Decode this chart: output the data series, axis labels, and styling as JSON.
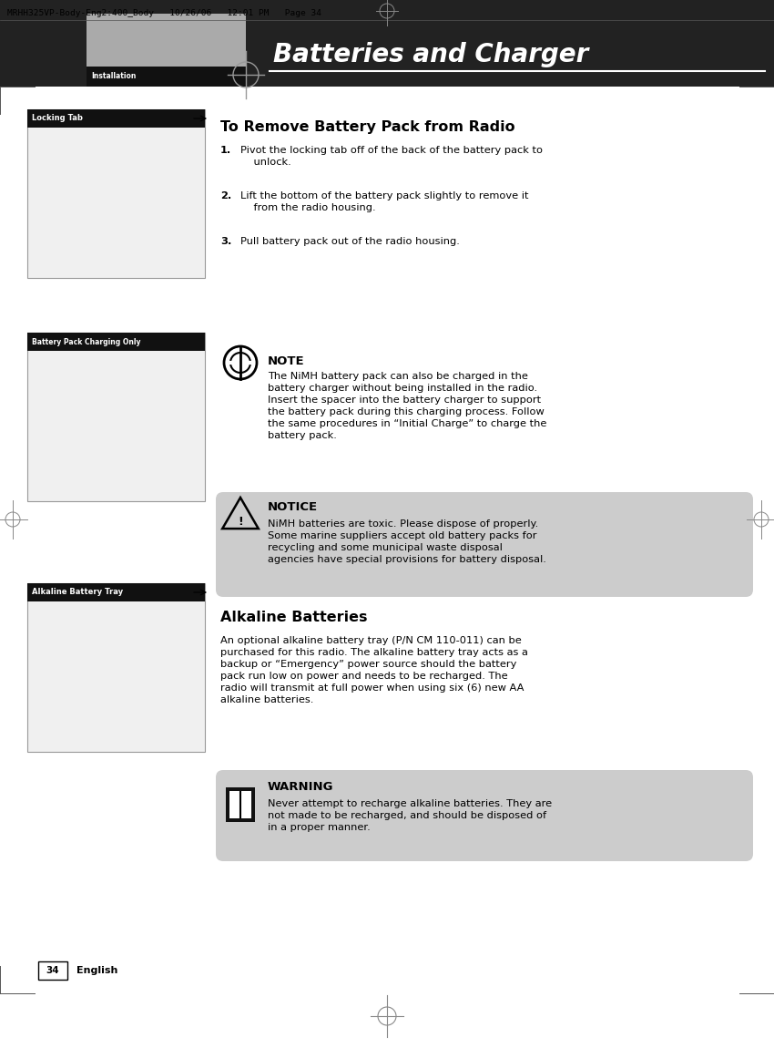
{
  "page_bg": "#ffffff",
  "header_bg": "#222222",
  "header_text": "MRHH325VP-Body-Eng2:400_Body   10/26/06   12:01 PM   Page 34",
  "gray_rect_color": "#aaaaaa",
  "installation_label": "Installation",
  "section_title": "Batteries and Charger",
  "locking_tab_label": "Locking Tab",
  "battery_pack_label": "Battery Pack Charging Only",
  "alkaline_battery_label": "Alkaline Battery Tray",
  "remove_title": "To Remove Battery Pack from Radio",
  "step1_num": "1.",
  "step1_text": "Pivot the locking tab off of the back of the battery pack to\n    unlock.",
  "step2_num": "2.",
  "step2_text": "Lift the bottom of the battery pack slightly to remove it\n    from the radio housing.",
  "step3_num": "3.",
  "step3_text": "Pull battery pack out of the radio housing.",
  "note_title": "NOTE",
  "note_text": "The NiMH battery pack can also be charged in the\nbattery charger without being installed in the radio.\nInsert the spacer into the battery charger to support\nthe battery pack during this charging process. Follow\nthe same procedures in “Initial Charge” to charge the\nbattery pack.",
  "notice_bg": "#cccccc",
  "notice_title": "NOTICE",
  "notice_text": "NiMH batteries are toxic. Please dispose of properly.\nSome marine suppliers accept old battery packs for\nrecycling and some municipal waste disposal\nagencies have special provisions for battery disposal.",
  "alkaline_section_title": "Alkaline Batteries",
  "alkaline_text": "An optional alkaline battery tray (P/N CM 110-011) can be\npurchased for this radio. The alkaline battery tray acts as a\nbackup or “Emergency” power source should the battery\npack run low on power and needs to be recharged. The\nradio will transmit at full power when using six (6) new AA\nalkaline batteries.",
  "warning_bg": "#cccccc",
  "warning_title": "WARNING",
  "warning_text": "Never attempt to recharge alkaline batteries. They are\nnot made to be recharged, and should be disposed of\nin a proper manner.",
  "footer_number": "34",
  "footer_text": "English",
  "body_fs": 8.2,
  "title_fs": 11.5,
  "note_title_fs": 9.5,
  "label_fs": 6.0,
  "header_fs": 6.8
}
